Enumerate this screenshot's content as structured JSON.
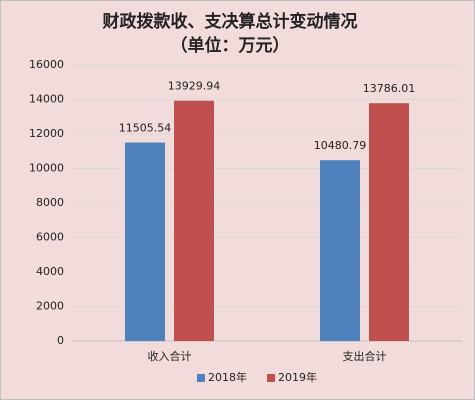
{
  "chart_data": {
    "type": "bar",
    "title": "财政拨款收、支决算总计变动情况",
    "subtitle": "（单位：万元）",
    "categories": [
      "收入合计",
      "支出合计"
    ],
    "series": [
      {
        "name": "2018年",
        "color": "#4f81bd",
        "values": [
          11505.54,
          10480.79
        ]
      },
      {
        "name": "2019年",
        "color": "#c0504d",
        "values": [
          13929.94,
          13786.01
        ]
      }
    ],
    "ylim": [
      0,
      16000
    ],
    "yticks": [
      0,
      2000,
      4000,
      6000,
      8000,
      10000,
      12000,
      14000,
      16000
    ],
    "grid": true,
    "legend": "bottom"
  }
}
